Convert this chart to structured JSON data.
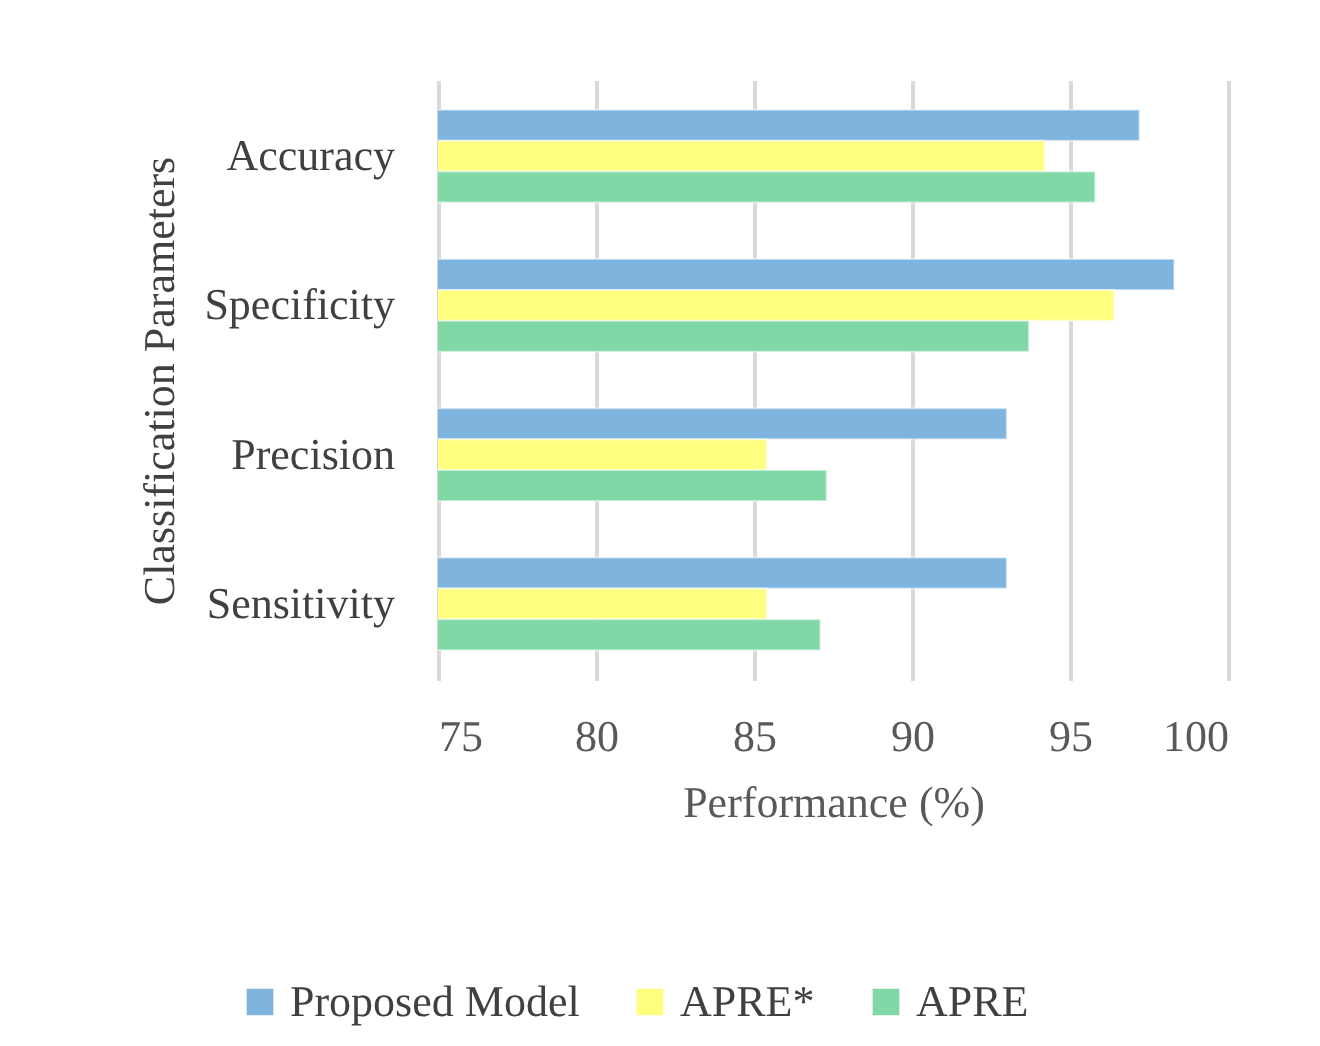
{
  "chart_data": {
    "type": "bar",
    "orientation": "horizontal",
    "xlabel": "Performance (%)",
    "ylabel": "Classification Parameters",
    "categories": [
      "Accuracy",
      "Specificity",
      "Precision",
      "Sensitivity"
    ],
    "series": [
      {
        "name": "Proposed Model",
        "color": "#7fb4de",
        "values": [
          97.2,
          98.3,
          93.0,
          93.0
        ]
      },
      {
        "name": "APRE*",
        "color": "#ffff7f",
        "values": [
          94.2,
          96.4,
          85.4,
          85.4
        ]
      },
      {
        "name": "APRE",
        "color": "#80d8a6",
        "values": [
          95.8,
          93.7,
          87.3,
          87.1
        ]
      }
    ],
    "xlim": [
      75,
      100
    ],
    "xticks": [
      75,
      80,
      85,
      90,
      95,
      100
    ],
    "grid": "x",
    "legend": "bottom"
  }
}
